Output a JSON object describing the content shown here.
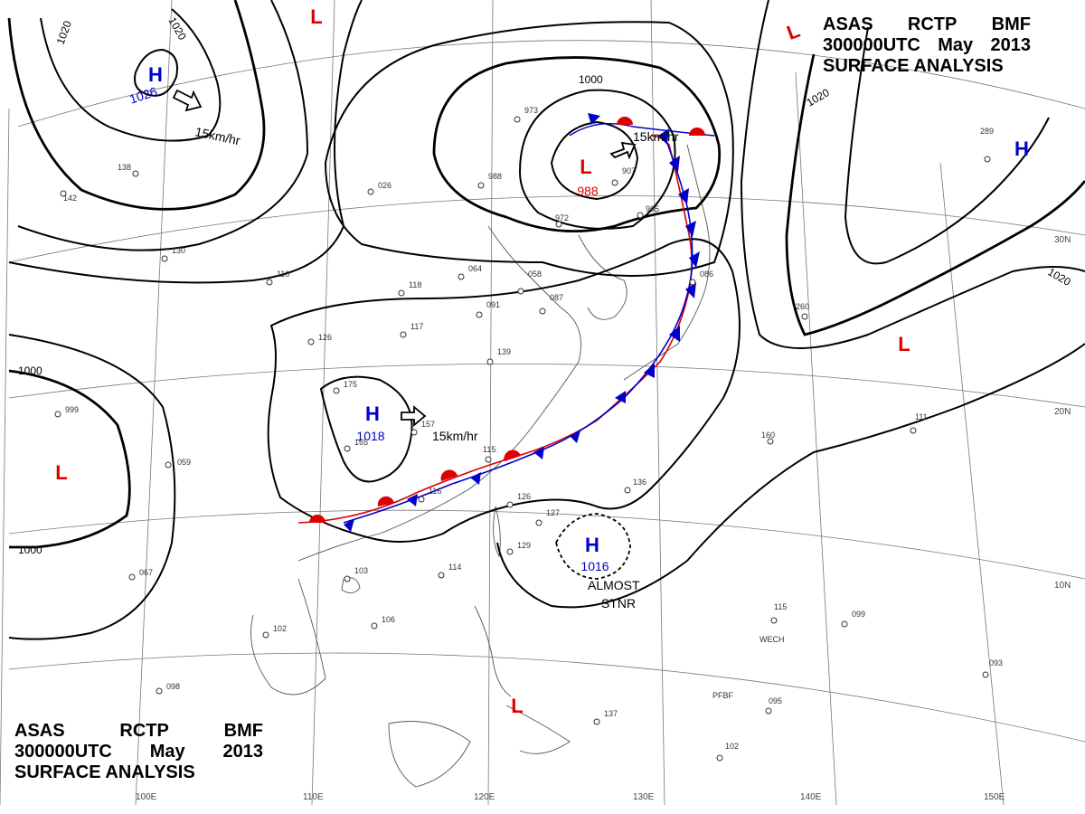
{
  "header": {
    "agency": [
      "ASAS",
      "RCTP",
      "BMF"
    ],
    "time": "300000UTC",
    "month": "May",
    "year": "2013",
    "product": "SURFACE ANALYSIS"
  },
  "colors": {
    "high": "#0000cc",
    "low": "#dd0000",
    "isobar": "#000000",
    "grid": "#777777",
    "coast": "#555555"
  },
  "centers": {
    "h_nw": {
      "letter": "H",
      "value": "1026"
    },
    "h_china": {
      "letter": "H",
      "value": "1018"
    },
    "h_scs": {
      "letter": "H",
      "value": "1016"
    },
    "l_japan": {
      "letter": "L",
      "value": "988"
    },
    "h_ne": {
      "letter": "H"
    },
    "l_top": {
      "letter": "L"
    },
    "l_tr": {
      "letter": "L"
    },
    "l_west": {
      "letter": "L"
    },
    "l_pacific": {
      "letter": "L"
    },
    "l_phil": {
      "letter": "L"
    }
  },
  "motion": {
    "nw": "15km/hr",
    "china": "15km/hr",
    "japan": "15km/hr",
    "stnr_1": "ALMOST",
    "stnr_2": "STNR"
  },
  "isobar_labels": {
    "a": "1020",
    "b": "1020",
    "c": "1000",
    "d": "1000",
    "e": "1000",
    "f": "1020",
    "g": "1020"
  },
  "lon_labels": [
    "100E",
    "110E",
    "120E",
    "130E",
    "140E",
    "150E"
  ],
  "lat_labels": [
    "30N",
    "20N",
    "10N"
  ],
  "stations": {
    "s1": "973",
    "s2": "988",
    "s3": "026",
    "s4": "064",
    "s5": "058",
    "s6": "091",
    "s7": "087",
    "s8": "139",
    "s9": "175",
    "s10": "165",
    "s11": "157",
    "s12": "115",
    "s13": "116",
    "s14": "126",
    "s15": "127",
    "s16": "129",
    "s17": "114",
    "s18": "103",
    "s19": "106",
    "s20": "102",
    "s21": "098",
    "s22": "999",
    "s23": "059",
    "s24": "067",
    "s25": "289",
    "s26": "160",
    "s27": "111",
    "s28": "115",
    "s29": "099",
    "s30": "093",
    "s31": "095",
    "s32": "102",
    "s33": "136",
    "s34": "137",
    "s35": "138",
    "s36": "142",
    "s37": "130",
    "s38": "110",
    "s39": "126",
    "s40": "118",
    "s41": "117",
    "s42": "260",
    "s43": "907",
    "s44": "965",
    "s45": "972",
    "s46": "086"
  },
  "station_ids": {
    "w1": "WECH",
    "w2": "PFBF"
  }
}
